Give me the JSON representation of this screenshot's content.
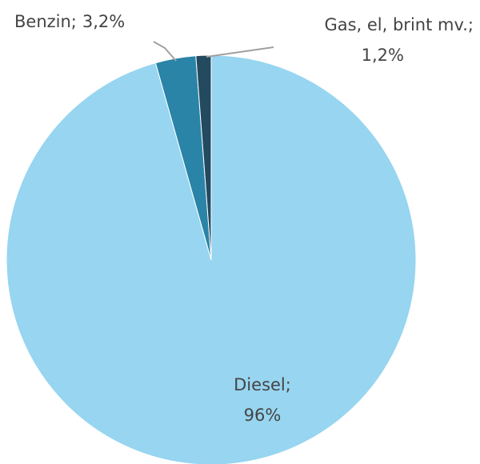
{
  "chart_data": {
    "type": "pie",
    "categories": [
      "Diesel;",
      "Benzin;",
      "Gas, el, brint mv.;"
    ],
    "values": [
      96,
      3.2,
      1.2
    ],
    "value_labels": [
      "96%",
      "3,2%",
      "1,2%"
    ],
    "colors": [
      "#97d5f0",
      "#2a84a8",
      "#234a5f"
    ]
  }
}
